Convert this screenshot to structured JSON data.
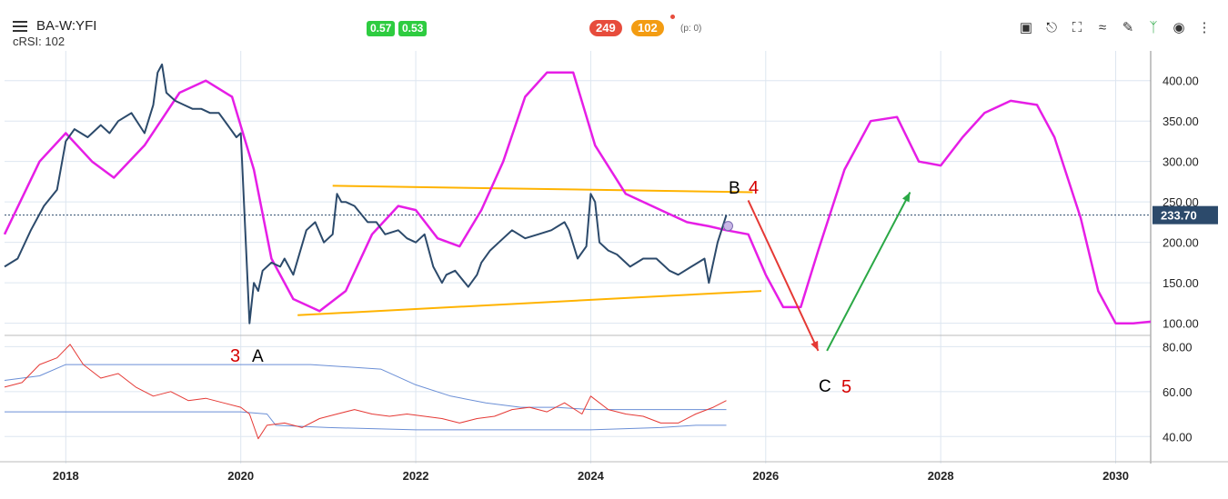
{
  "header": {
    "symbol": "BA-W:YFI",
    "indicator": "cRSI: 102",
    "badge1": "0.57",
    "badge2": "0.53",
    "count_red": "249",
    "count_orange": "102",
    "p_note": "(p: 0)"
  },
  "toolbar": {
    "icons": [
      "save-icon",
      "pin-icon",
      "fullscreen-icon",
      "compare-icon",
      "draw-icon",
      "indicator-icon",
      "eye-icon",
      "more-icon"
    ]
  },
  "colors": {
    "price": "#2c4a6b",
    "cycle": "#e61ee6",
    "channel": "#ffb300",
    "rsi_fast": "#e53935",
    "rsi_band": "#6b8fd6",
    "arrow_down": "#e53935",
    "arrow_up": "#2aa845",
    "last_price_bg": "#2c4a6b"
  },
  "annotations": {
    "wave3": "3",
    "waveA": "A",
    "waveB": "B",
    "wave4": "4",
    "waveC": "C",
    "wave5": "5"
  },
  "chart_data": [
    {
      "type": "line",
      "ylim": [
        85,
        430
      ],
      "y_ticks": [
        "400.00",
        "350.00",
        "300.00",
        "250.00",
        "200.00",
        "150.00",
        "100.00"
      ],
      "y_tick_values": [
        400,
        350,
        300,
        250,
        200,
        150,
        100
      ],
      "x_ticks": [
        "2018",
        "2020",
        "2022",
        "2024",
        "2026",
        "2028",
        "2030"
      ],
      "x_tick_values": [
        2018,
        2020,
        2022,
        2024,
        2026,
        2028,
        2030
      ],
      "xlim": [
        2017.3,
        2030.4
      ],
      "last_price": 233.7,
      "last_price_label": "233.70",
      "series": [
        {
          "key": "price",
          "x": [
            2017.3,
            2017.45,
            2017.6,
            2017.75,
            2017.9,
            2018.0,
            2018.1,
            2018.25,
            2018.4,
            2018.5,
            2018.6,
            2018.75,
            2018.9,
            2019.0,
            2019.05,
            2019.1,
            2019.15,
            2019.25,
            2019.35,
            2019.45,
            2019.55,
            2019.65,
            2019.75,
            2019.85,
            2019.95,
            2020.0,
            2020.1,
            2020.15,
            2020.2,
            2020.25,
            2020.35,
            2020.45,
            2020.5,
            2020.6,
            2020.75,
            2020.85,
            2020.95,
            2021.05,
            2021.1,
            2021.15,
            2021.2,
            2021.3,
            2021.45,
            2021.55,
            2021.65,
            2021.8,
            2021.9,
            2022.0,
            2022.1,
            2022.2,
            2022.3,
            2022.35,
            2022.45,
            2022.6,
            2022.7,
            2022.75,
            2022.85,
            2022.95,
            2023.1,
            2023.25,
            2023.4,
            2023.55,
            2023.7,
            2023.75,
            2023.85,
            2023.95,
            2024.0,
            2024.05,
            2024.1,
            2024.2,
            2024.3,
            2024.45,
            2024.6,
            2024.75,
            2024.9,
            2025.0,
            2025.15,
            2025.3,
            2025.35,
            2025.45,
            2025.55
          ],
          "values": [
            170,
            180,
            215,
            245,
            265,
            325,
            340,
            330,
            345,
            335,
            350,
            360,
            335,
            370,
            410,
            420,
            385,
            375,
            370,
            365,
            365,
            360,
            360,
            345,
            330,
            335,
            100,
            150,
            140,
            165,
            175,
            170,
            180,
            160,
            215,
            225,
            200,
            210,
            260,
            250,
            250,
            245,
            225,
            225,
            210,
            215,
            205,
            200,
            210,
            170,
            150,
            160,
            165,
            145,
            160,
            175,
            190,
            200,
            215,
            205,
            210,
            215,
            225,
            215,
            180,
            195,
            260,
            250,
            200,
            190,
            185,
            170,
            180,
            180,
            165,
            160,
            170,
            180,
            150,
            200,
            233.7
          ]
        },
        {
          "key": "cycle",
          "x": [
            2017.3,
            2017.7,
            2018.0,
            2018.3,
            2018.55,
            2018.9,
            2019.3,
            2019.6,
            2019.9,
            2020.15,
            2020.35,
            2020.6,
            2020.9,
            2021.2,
            2021.5,
            2021.8,
            2022.0,
            2022.25,
            2022.5,
            2022.75,
            2023.0,
            2023.25,
            2023.5,
            2023.8,
            2024.05,
            2024.4,
            2024.8,
            2025.1,
            2025.35,
            2025.55,
            2025.8,
            2026.0,
            2026.2,
            2026.4,
            2026.6,
            2026.9,
            2027.2,
            2027.5,
            2027.75,
            2028.0,
            2028.25,
            2028.5,
            2028.8,
            2029.1,
            2029.3,
            2029.6,
            2029.8,
            2030.0,
            2030.2,
            2030.4
          ],
          "values": [
            210,
            300,
            335,
            300,
            280,
            320,
            385,
            400,
            380,
            290,
            180,
            130,
            115,
            140,
            210,
            245,
            240,
            205,
            195,
            240,
            300,
            380,
            410,
            410,
            320,
            260,
            240,
            225,
            220,
            215,
            210,
            160,
            120,
            120,
            190,
            290,
            350,
            355,
            300,
            295,
            330,
            360,
            375,
            370,
            330,
            230,
            140,
            100,
            100,
            102
          ]
        },
        {
          "key": "channel_top",
          "x": [
            2021.05,
            2025.85
          ],
          "values": [
            270,
            262
          ]
        },
        {
          "key": "channel_bottom",
          "x": [
            2020.65,
            2025.95
          ],
          "values": [
            110,
            140
          ]
        },
        {
          "key": "arrow_down",
          "x": [
            2025.8,
            2026.6
          ],
          "values": [
            252,
            66
          ]
        },
        {
          "key": "arrow_up",
          "x": [
            2026.7,
            2027.65
          ],
          "values": [
            66,
            262
          ]
        }
      ]
    },
    {
      "type": "line",
      "ylim": [
        30,
        85
      ],
      "y_ticks": [
        "80.00",
        "60.00",
        "40.00"
      ],
      "y_tick_values": [
        80,
        60,
        40
      ],
      "series": [
        {
          "key": "rsi_fast",
          "x": [
            2017.3,
            2017.5,
            2017.7,
            2017.9,
            2018.05,
            2018.2,
            2018.4,
            2018.6,
            2018.8,
            2019.0,
            2019.2,
            2019.4,
            2019.6,
            2019.8,
            2020.0,
            2020.1,
            2020.2,
            2020.3,
            2020.5,
            2020.7,
            2020.9,
            2021.1,
            2021.3,
            2021.5,
            2021.7,
            2021.9,
            2022.1,
            2022.3,
            2022.5,
            2022.7,
            2022.9,
            2023.1,
            2023.3,
            2023.5,
            2023.7,
            2023.9,
            2024.0,
            2024.2,
            2024.4,
            2024.6,
            2024.8,
            2025.0,
            2025.2,
            2025.4,
            2025.55
          ],
          "values": [
            62,
            64,
            72,
            75,
            81,
            72,
            66,
            68,
            62,
            58,
            60,
            56,
            57,
            55,
            53,
            50,
            39,
            45,
            46,
            44,
            48,
            50,
            52,
            50,
            49,
            50,
            49,
            48,
            46,
            48,
            49,
            52,
            53,
            51,
            55,
            50,
            58,
            52,
            50,
            49,
            46,
            46,
            50,
            53,
            56
          ]
        },
        {
          "key": "rsi_upper",
          "x": [
            2017.3,
            2017.7,
            2018.0,
            2018.5,
            2019.0,
            2019.5,
            2020.0,
            2020.3,
            2020.8,
            2021.2,
            2021.6,
            2022.0,
            2022.4,
            2022.8,
            2023.2,
            2023.6,
            2024.0,
            2024.4,
            2024.8,
            2025.2,
            2025.55
          ],
          "values": [
            65,
            67,
            72,
            72,
            72,
            72,
            72,
            72,
            72,
            71,
            70,
            63,
            58,
            55,
            53,
            53,
            52,
            52,
            52,
            52,
            52
          ]
        },
        {
          "key": "rsi_lower",
          "x": [
            2017.3,
            2018.0,
            2019.0,
            2020.0,
            2020.3,
            2020.4,
            2021.0,
            2022.0,
            2023.0,
            2024.0,
            2024.8,
            2025.2,
            2025.55
          ],
          "values": [
            51,
            51,
            51,
            51,
            50,
            45,
            44,
            43,
            43,
            43,
            44,
            45,
            45
          ]
        }
      ]
    }
  ]
}
